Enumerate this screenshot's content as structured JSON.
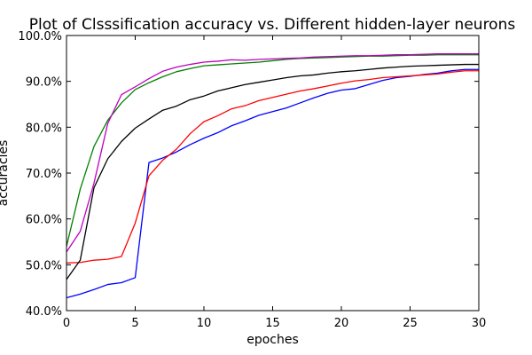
{
  "chart_data": {
    "type": "line",
    "title": "Plot of Clsssification accuracy vs. Different hidden-layer neurons",
    "xlabel": "epoches",
    "ylabel": "accuracies",
    "xlim": [
      0,
      30
    ],
    "ylim": [
      40,
      100
    ],
    "x_ticks": [
      0,
      5,
      10,
      15,
      20,
      25,
      30
    ],
    "x_tick_labels": [
      "0",
      "5",
      "10",
      "15",
      "20",
      "25",
      "30"
    ],
    "y_ticks": [
      40,
      50,
      60,
      70,
      80,
      90,
      100
    ],
    "y_tick_labels": [
      "40.0%",
      "50.0%",
      "60.0%",
      "70.0%",
      "80.0%",
      "90.0%",
      "100.0%"
    ],
    "grid": false,
    "legend": "none",
    "x": [
      0,
      1,
      2,
      3,
      4,
      5,
      6,
      7,
      8,
      9,
      10,
      11,
      12,
      13,
      14,
      15,
      16,
      17,
      18,
      19,
      20,
      21,
      22,
      23,
      24,
      25,
      26,
      27,
      28,
      29,
      30
    ],
    "series": [
      {
        "color": "#0000ff",
        "values": [
          42.8,
          43.6,
          44.6,
          45.7,
          46.1,
          47.2,
          72.3,
          73.3,
          74.6,
          76.2,
          77.6,
          78.8,
          80.3,
          81.4,
          82.6,
          83.4,
          84.2,
          85.3,
          86.4,
          87.4,
          88.1,
          88.4,
          89.3,
          90.2,
          90.8,
          91.1,
          91.5,
          91.8,
          92.3,
          92.6,
          92.6
        ]
      },
      {
        "color": "#ff0000",
        "values": [
          50.4,
          50.5,
          51.0,
          51.2,
          51.8,
          59.1,
          69.4,
          72.8,
          75.2,
          78.6,
          81.2,
          82.5,
          84.0,
          84.7,
          85.8,
          86.5,
          87.2,
          87.9,
          88.4,
          89.0,
          89.6,
          90.1,
          90.4,
          90.8,
          91.0,
          91.2,
          91.4,
          91.6,
          92.0,
          92.3,
          92.3
        ]
      },
      {
        "color": "#000000",
        "values": [
          46.8,
          51.0,
          66.8,
          73.1,
          76.9,
          79.8,
          81.8,
          83.7,
          84.6,
          86.0,
          86.8,
          87.9,
          88.6,
          89.3,
          89.8,
          90.3,
          90.8,
          91.2,
          91.4,
          91.8,
          92.1,
          92.3,
          92.6,
          92.9,
          93.1,
          93.3,
          93.4,
          93.5,
          93.6,
          93.7,
          93.7
        ]
      },
      {
        "color": "#008000",
        "values": [
          54.0,
          66.5,
          75.8,
          81.5,
          85.3,
          88.2,
          89.7,
          91.0,
          92.1,
          92.8,
          93.4,
          93.6,
          93.8,
          94.0,
          94.2,
          94.5,
          94.8,
          95.0,
          95.1,
          95.2,
          95.3,
          95.4,
          95.5,
          95.5,
          95.6,
          95.7,
          95.7,
          95.8,
          95.8,
          95.8,
          95.8
        ]
      },
      {
        "color": "#bf00bf",
        "values": [
          52.8,
          57.3,
          67.8,
          80.8,
          87.1,
          88.8,
          90.6,
          92.2,
          93.1,
          93.7,
          94.2,
          94.4,
          94.7,
          94.6,
          94.8,
          94.9,
          95.0,
          95.1,
          95.3,
          95.4,
          95.5,
          95.6,
          95.6,
          95.7,
          95.8,
          95.8,
          95.9,
          96.0,
          96.0,
          96.0,
          96.0
        ]
      }
    ]
  }
}
